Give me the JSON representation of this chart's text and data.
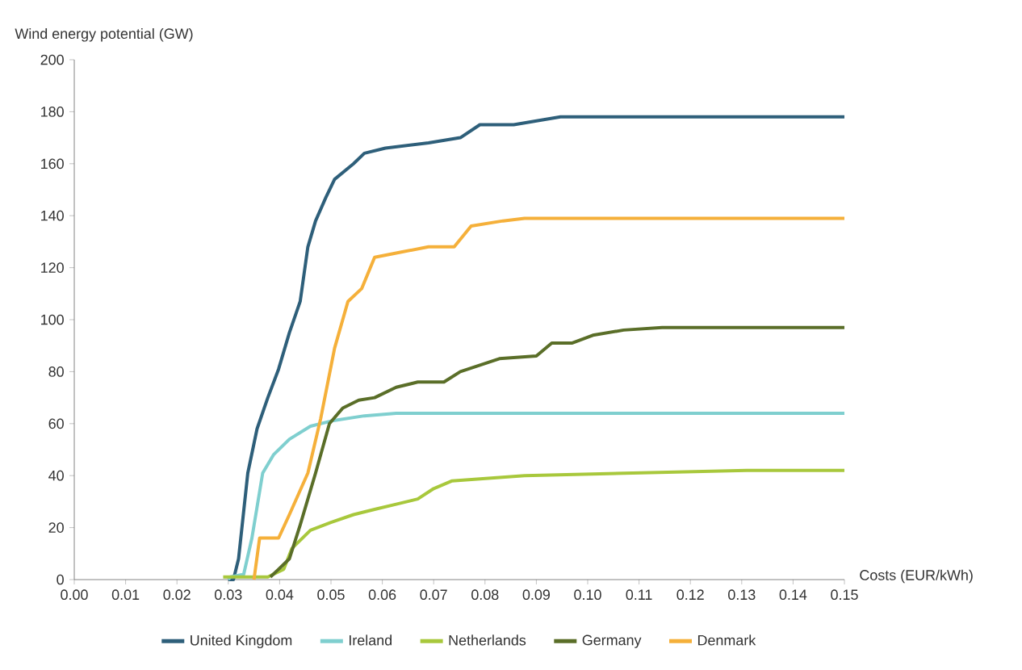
{
  "chart_data": {
    "type": "line",
    "ylabel": "Wind energy potential (GW)",
    "xlabel": "Costs (EUR/kWh)",
    "xlim": [
      0,
      0.15
    ],
    "ylim": [
      0,
      200
    ],
    "xticks": [
      {
        "value": 0,
        "label": "0.00"
      },
      {
        "value": 0.01,
        "label": "0.01"
      },
      {
        "value": 0.02,
        "label": "0.02"
      },
      {
        "value": 0.03,
        "label": "0.03"
      },
      {
        "value": 0.04,
        "label": "0.04"
      },
      {
        "value": 0.05,
        "label": "0.05"
      },
      {
        "value": 0.06,
        "label": "0.06"
      },
      {
        "value": 0.07,
        "label": "0.07"
      },
      {
        "value": 0.08,
        "label": "0.08"
      },
      {
        "value": 0.09,
        "label": "0.09"
      },
      {
        "value": 0.1,
        "label": "0.10"
      },
      {
        "value": 0.11,
        "label": "0.11"
      },
      {
        "value": 0.12,
        "label": "0.12"
      },
      {
        "value": 0.13,
        "label": "0.13"
      },
      {
        "value": 0.14,
        "label": "0.14"
      },
      {
        "value": 0.15,
        "label": "0.15"
      }
    ],
    "yticks": [
      0,
      20,
      40,
      60,
      80,
      100,
      120,
      140,
      160,
      180,
      200
    ],
    "grid": false,
    "legend": "bottom",
    "series": [
      {
        "name": "United Kingdom",
        "color": "#2e5f7a",
        "x": [
          0.03,
          0.031,
          0.032,
          0.0338,
          0.0356,
          0.0377,
          0.0398,
          0.0419,
          0.044,
          0.0455,
          0.047,
          0.049,
          0.0507,
          0.0544,
          0.0565,
          0.0606,
          0.069,
          0.0752,
          0.079,
          0.0856,
          0.0947,
          0.15
        ],
        "values": [
          0,
          0,
          8,
          41,
          58,
          70,
          81,
          95,
          107,
          128,
          138,
          147,
          154,
          160,
          164,
          166,
          168,
          170,
          175,
          175,
          178,
          178
        ]
      },
      {
        "name": "Ireland",
        "color": "#7fcfcf",
        "x": [
          0.03,
          0.0304,
          0.033,
          0.0346,
          0.0367,
          0.0388,
          0.0419,
          0.046,
          0.05,
          0.0565,
          0.0627,
          0.15
        ],
        "values": [
          0,
          1,
          2,
          16,
          41,
          48,
          54,
          59,
          61,
          63,
          64,
          64
        ]
      },
      {
        "name": "Netherlands",
        "color": "#a8c83c",
        "x": [
          0.029,
          0.0377,
          0.0408,
          0.0424,
          0.046,
          0.05,
          0.0544,
          0.0585,
          0.0627,
          0.0669,
          0.07,
          0.0736,
          0.0877,
          0.131,
          0.15
        ],
        "values": [
          1,
          1,
          4,
          12,
          19,
          22,
          25,
          27,
          29,
          31,
          35,
          38,
          40,
          42,
          42
        ]
      },
      {
        "name": "Germany",
        "color": "#5a6e28",
        "x": [
          0.0382,
          0.0398,
          0.0419,
          0.044,
          0.047,
          0.0497,
          0.0523,
          0.0554,
          0.0585,
          0.0627,
          0.0669,
          0.072,
          0.0752,
          0.0828,
          0.09,
          0.093,
          0.097,
          0.101,
          0.107,
          0.1145,
          0.15
        ],
        "values": [
          1,
          4,
          8,
          21,
          41,
          60,
          66,
          69,
          70,
          74,
          76,
          76,
          80,
          85,
          86,
          91,
          91,
          94,
          96,
          97,
          97
        ]
      },
      {
        "name": "Denmark",
        "color": "#f5b03a",
        "x": [
          0.035,
          0.0361,
          0.0398,
          0.0419,
          0.0455,
          0.048,
          0.0507,
          0.0533,
          0.056,
          0.0585,
          0.0637,
          0.069,
          0.074,
          0.0773,
          0.0835,
          0.0877,
          0.15
        ],
        "values": [
          0,
          16,
          16,
          25,
          41,
          62,
          89,
          107,
          112,
          124,
          126,
          128,
          128,
          136,
          138,
          139,
          139
        ]
      }
    ]
  }
}
